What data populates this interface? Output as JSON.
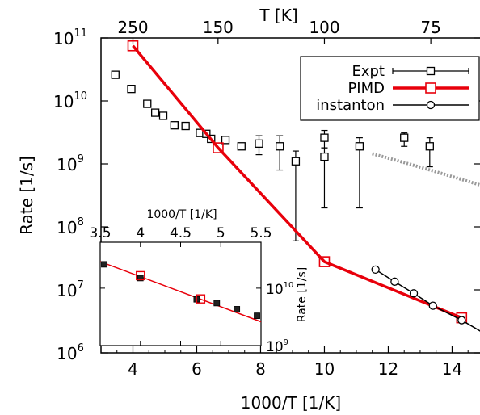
{
  "chart_data": [
    {
      "type": "scatter",
      "xlabel": "1000/T [1/K]",
      "ylabel": "Rate [1/s]",
      "x2label": "T [K]",
      "xlim": [
        3.0,
        14.9
      ],
      "ylim_log10": [
        6,
        11
      ],
      "y_scale": "log",
      "xticks": [
        4,
        6,
        8,
        10,
        12,
        14
      ],
      "xtick_labels": [
        "4",
        "6",
        "8",
        "10",
        "12",
        "14"
      ],
      "yticks_base": "10",
      "yticks_exp": [
        "6",
        "7",
        "8",
        "9",
        "10",
        "11"
      ],
      "top_ticks": [
        {
          "T": 250,
          "label": "250"
        },
        {
          "T": 150,
          "label": "150"
        },
        {
          "T": 100,
          "label": "100"
        },
        {
          "T": 75,
          "label": "75"
        }
      ],
      "legend_position": "top-right",
      "series": [
        {
          "name": "Expt",
          "color": "#000000",
          "marker": "square-open",
          "errorbars": true,
          "points": [
            {
              "x": 3.45,
              "y": 26000000000.0
            },
            {
              "x": 3.95,
              "y": 15500000000.0
            },
            {
              "x": 4.45,
              "y": 9000000000.0
            },
            {
              "x": 4.7,
              "y": 6500000000.0
            },
            {
              "x": 4.95,
              "y": 5800000000.0
            },
            {
              "x": 5.3,
              "y": 4100000000.0
            },
            {
              "x": 5.65,
              "y": 4000000000.0
            },
            {
              "x": 6.1,
              "y": 3100000000.0
            },
            {
              "x": 6.3,
              "y": 3000000000.0
            },
            {
              "x": 6.45,
              "y": 2500000000.0
            },
            {
              "x": 6.9,
              "y": 2400000000.0
            },
            {
              "x": 7.4,
              "y": 1900000000.0
            },
            {
              "x": 7.95,
              "y": 2100000000.0,
              "lo": 1400000000.0,
              "hi": 2800000000.0
            },
            {
              "x": 8.6,
              "y": 1900000000.0,
              "lo": 800000000.0,
              "hi": 2800000000.0
            },
            {
              "x": 9.1,
              "y": 1100000000.0,
              "lo": 60000000.0,
              "hi": 1600000000.0
            },
            {
              "x": 10.0,
              "y": 2600000000.0,
              "lo": 1800000000.0,
              "hi": 3400000000.0
            },
            {
              "x": 10.0,
              "y": 1300000000.0,
              "lo": 200000000.0,
              "hi": 1800000000.0
            },
            {
              "x": 11.1,
              "y": 1900000000.0,
              "lo": 200000000.0,
              "hi": 2600000000.0
            },
            {
              "x": 12.5,
              "y": 2600000000.0,
              "lo": 1900000000.0,
              "hi": 3100000000.0
            },
            {
              "x": 13.3,
              "y": 1900000000.0,
              "lo": 900000000.0,
              "hi": 2600000000.0
            }
          ]
        },
        {
          "name": "PIMD",
          "color": "#e8000b",
          "marker": "square-open",
          "points": [
            {
              "x": 4.0,
              "y": 75000000000.0
            },
            {
              "x": 6.67,
              "y": 1800000000.0
            },
            {
              "x": 10.0,
              "y": 28000000.0
            },
            {
              "x": 14.3,
              "y": 3600000.0
            }
          ]
        },
        {
          "name": "instanton",
          "color": "#000000",
          "marker": "circle-open",
          "points": [
            {
              "x": 11.6,
              "y": 21000000.0
            },
            {
              "x": 12.2,
              "y": 13500000.0
            },
            {
              "x": 12.8,
              "y": 8800000.0
            },
            {
              "x": 13.4,
              "y": 5600000.0
            },
            {
              "x": 14.3,
              "y": 3300000.0
            }
          ]
        },
        {
          "color": "#999999",
          "style": "dashed",
          "points": [
            {
              "x": 11.5,
              "y": 1450000000.0
            },
            {
              "x": 12.5,
              "y": 1050000000.0
            },
            {
              "x": 13.5,
              "y": 750000000.0
            },
            {
              "x": 14.9,
              "y": 460000000.0
            }
          ]
        }
      ]
    },
    {
      "type": "scatter",
      "inset": true,
      "xlabel": "1000/T [1/K]",
      "ylabel": "Rate [1/s]",
      "xlim": [
        3.5,
        5.5
      ],
      "ylim_log10": [
        9,
        10.8
      ],
      "y_scale": "log",
      "xticks": [
        "3.5",
        "4",
        "4.5",
        "5",
        "5.5"
      ],
      "yticks_base": "10",
      "yticks_exp": [
        "9",
        "10"
      ],
      "series": [
        {
          "name": "Expt",
          "color": "#000000",
          "marker": "square-filled",
          "points": [
            {
              "x": 3.55,
              "y": 26000000000.0
            },
            {
              "x": 4.0,
              "y": 15000000000.0
            },
            {
              "x": 4.7,
              "y": 6400000000.0
            },
            {
              "x": 4.95,
              "y": 5500000000.0
            },
            {
              "x": 5.2,
              "y": 4300000000.0
            },
            {
              "x": 5.45,
              "y": 3300000000.0
            }
          ]
        },
        {
          "name": "PIMD",
          "color": "#e8000b",
          "marker": "square-open",
          "points": [
            {
              "x": 4.0,
              "y": 16500000000.0
            },
            {
              "x": 4.75,
              "y": 6500000000.0
            }
          ]
        }
      ],
      "fit_line": {
        "color": "#e8000b",
        "points": [
          {
            "x": 3.5,
            "y": 29000000000.0
          },
          {
            "x": 5.5,
            "y": 2600000000.0
          }
        ]
      }
    }
  ]
}
